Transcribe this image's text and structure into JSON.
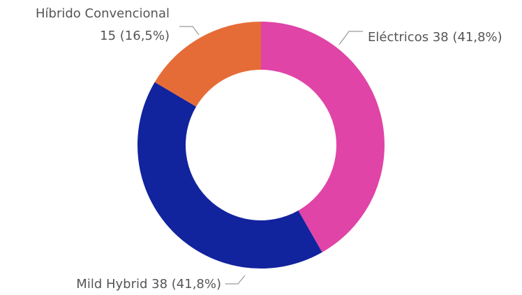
{
  "chart_data": {
    "type": "pie",
    "donut": true,
    "title": "",
    "grid": false,
    "legend": "none",
    "slices": [
      {
        "label": "Eléctricos",
        "value": 38,
        "percent_text": "41,8%",
        "display": "Eléctricos 38 (41,8%)",
        "color": "#e044a7"
      },
      {
        "label": "Mild Hybrid",
        "value": 38,
        "percent_text": "41,8%",
        "display": "Mild Hybrid 38 (41,8%)",
        "color": "#12239e"
      },
      {
        "label": "Híbrido Convencional",
        "value": 15,
        "percent_text": "16,5%",
        "display_line1": "Híbrido Convencional",
        "display_line2": "15 (16,5%)",
        "color": "#e66c37"
      }
    ]
  }
}
